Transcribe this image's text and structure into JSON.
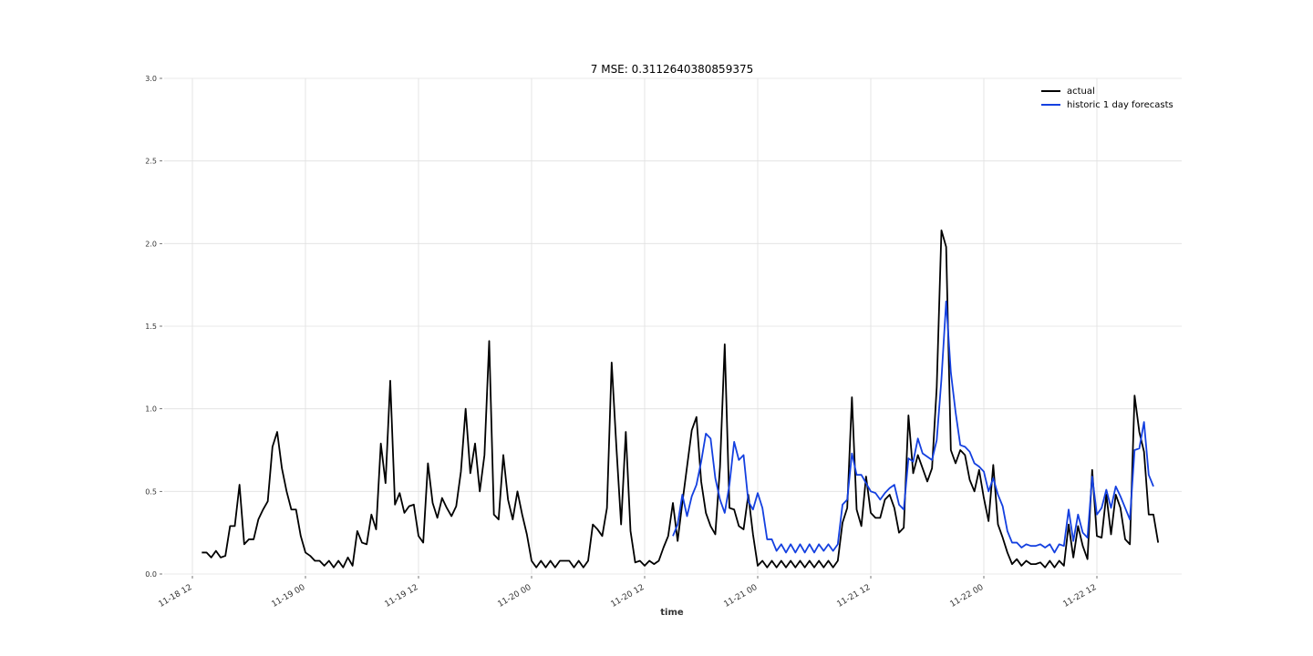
{
  "chart_data": {
    "type": "line",
    "title": "7 MSE: 0.3112640380859375",
    "xlabel": "time",
    "ylabel": "",
    "ylim": [
      0,
      3.0
    ],
    "yticks": [
      "0.0",
      "0.5",
      "1.0",
      "1.5",
      "2.0",
      "2.5",
      "3.0"
    ],
    "xlim": [
      "2023-11-18T09:00",
      "2023-11-22T21:00"
    ],
    "xticks": [
      "11-18 12",
      "11-19 00",
      "11-19 12",
      "11-20 00",
      "11-20 12",
      "11-21 00",
      "11-21 12",
      "11-22 00",
      "11-22 12"
    ],
    "x_start": "2023-11-18T13:00",
    "x_step_hours": 0.5,
    "grid": true,
    "legend_position": "top-right",
    "series": [
      {
        "name": "actual",
        "color": "#000000",
        "start_index": 0,
        "values": [
          0.13,
          0.13,
          0.1,
          0.14,
          0.1,
          0.11,
          0.29,
          0.29,
          0.54,
          0.18,
          0.21,
          0.21,
          0.33,
          0.39,
          0.44,
          0.77,
          0.86,
          0.64,
          0.5,
          0.39,
          0.39,
          0.23,
          0.13,
          0.11,
          0.08,
          0.08,
          0.05,
          0.08,
          0.04,
          0.08,
          0.04,
          0.1,
          0.05,
          0.26,
          0.19,
          0.18,
          0.36,
          0.27,
          0.79,
          0.55,
          1.17,
          0.42,
          0.49,
          0.37,
          0.41,
          0.42,
          0.23,
          0.19,
          0.67,
          0.43,
          0.34,
          0.46,
          0.4,
          0.35,
          0.41,
          0.62,
          1.0,
          0.61,
          0.79,
          0.5,
          0.72,
          1.41,
          0.36,
          0.33,
          0.72,
          0.45,
          0.33,
          0.5,
          0.36,
          0.24,
          0.08,
          0.04,
          0.08,
          0.04,
          0.08,
          0.04,
          0.08,
          0.08,
          0.08,
          0.04,
          0.08,
          0.04,
          0.08,
          0.3,
          0.27,
          0.23,
          0.4,
          1.28,
          0.77,
          0.3,
          0.86,
          0.26,
          0.07,
          0.08,
          0.05,
          0.08,
          0.06,
          0.08,
          0.16,
          0.23,
          0.43,
          0.2,
          0.43,
          0.65,
          0.87,
          0.95,
          0.56,
          0.37,
          0.29,
          0.24,
          0.65,
          1.39,
          0.4,
          0.39,
          0.29,
          0.27,
          0.48,
          0.24,
          0.05,
          0.08,
          0.04,
          0.08,
          0.04,
          0.08,
          0.04,
          0.08,
          0.04,
          0.08,
          0.04,
          0.08,
          0.04,
          0.08,
          0.04,
          0.08,
          0.04,
          0.08,
          0.31,
          0.4,
          1.07,
          0.39,
          0.29,
          0.59,
          0.37,
          0.34,
          0.34,
          0.45,
          0.48,
          0.4,
          0.25,
          0.28,
          0.96,
          0.61,
          0.72,
          0.64,
          0.56,
          0.64,
          1.13,
          2.08,
          1.98,
          0.75,
          0.67,
          0.75,
          0.72,
          0.57,
          0.5,
          0.63,
          0.46,
          0.32,
          0.66,
          0.3,
          0.22,
          0.13,
          0.06,
          0.09,
          0.05,
          0.08,
          0.06,
          0.06,
          0.07,
          0.04,
          0.08,
          0.04,
          0.08,
          0.05,
          0.3,
          0.1,
          0.29,
          0.17,
          0.09,
          0.63,
          0.23,
          0.22,
          0.48,
          0.24,
          0.48,
          0.4,
          0.21,
          0.18,
          1.08,
          0.86,
          0.74,
          0.36,
          0.36,
          0.19
        ]
      },
      {
        "name": "historic 1 day forecasts",
        "color": "#1440e0",
        "start_index": 100,
        "values": [
          0.23,
          0.3,
          0.48,
          0.35,
          0.47,
          0.54,
          0.68,
          0.85,
          0.82,
          0.58,
          0.45,
          0.37,
          0.54,
          0.8,
          0.69,
          0.72,
          0.44,
          0.39,
          0.49,
          0.4,
          0.21,
          0.21,
          0.14,
          0.18,
          0.13,
          0.18,
          0.13,
          0.18,
          0.13,
          0.18,
          0.13,
          0.18,
          0.14,
          0.18,
          0.14,
          0.18,
          0.42,
          0.45,
          0.73,
          0.6,
          0.6,
          0.55,
          0.5,
          0.49,
          0.45,
          0.49,
          0.52,
          0.54,
          0.42,
          0.39,
          0.7,
          0.68,
          0.82,
          0.73,
          0.71,
          0.69,
          0.81,
          1.18,
          1.65,
          1.22,
          0.98,
          0.78,
          0.77,
          0.74,
          0.67,
          0.65,
          0.62,
          0.5,
          0.58,
          0.48,
          0.41,
          0.26,
          0.19,
          0.19,
          0.16,
          0.18,
          0.17,
          0.17,
          0.18,
          0.16,
          0.18,
          0.13,
          0.18,
          0.17,
          0.39,
          0.2,
          0.36,
          0.25,
          0.22,
          0.59,
          0.36,
          0.4,
          0.51,
          0.4,
          0.53,
          0.47,
          0.4,
          0.33,
          0.75,
          0.76,
          0.92,
          0.6,
          0.53
        ]
      }
    ]
  }
}
